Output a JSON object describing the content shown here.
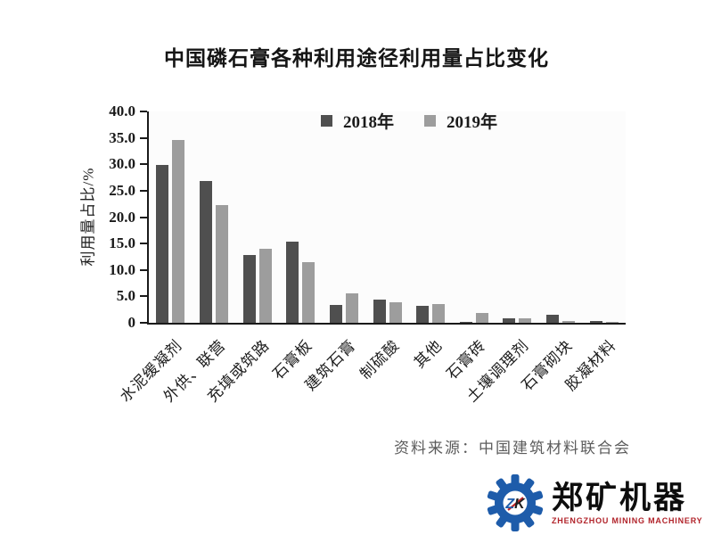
{
  "title": "中国磷石膏各种利用途径利用量占比变化",
  "source_note": "资料来源：中国建筑材料联合会",
  "colors": {
    "bar_2018": "#4f4f4f",
    "bar_2019": "#9d9d9d",
    "axis": "#1a1a1a",
    "source_text": "#5c5c5c",
    "logo_blue": "#1e5caa",
    "logo_red": "#b1232a"
  },
  "logo": {
    "monogram_z": "Z",
    "monogram_k": "K",
    "company_cn": "郑矿机器",
    "company_en": "ZHENGZHOU MINING MACHINERY"
  },
  "chart_data": {
    "type": "bar",
    "title": "中国磷石膏各种利用途径利用量占比变化",
    "xlabel": "",
    "ylabel": "利用量占比/%",
    "ylim": [
      0,
      40
    ],
    "ytick_step": 5,
    "ytick_labels": [
      "0",
      "5.0",
      "10.0",
      "15.0",
      "20.0",
      "25.0",
      "30.0",
      "35.0",
      "40.0"
    ],
    "grid": false,
    "legend_position": "top-inside",
    "categories": [
      "水泥缓凝剂",
      "外供、联营",
      "充填或筑路",
      "石膏板",
      "建筑石膏",
      "制硫酸",
      "其他",
      "石膏砖",
      "土壤调理剂",
      "石膏砌块",
      "胶凝材料"
    ],
    "series": [
      {
        "name": "2018年",
        "color": "#4f4f4f",
        "values": [
          29.8,
          26.8,
          12.8,
          15.4,
          3.4,
          4.4,
          3.2,
          0.2,
          0.9,
          1.5,
          0.4
        ]
      },
      {
        "name": "2019年",
        "color": "#9d9d9d",
        "values": [
          34.6,
          22.3,
          14.0,
          11.4,
          5.6,
          3.9,
          3.6,
          1.8,
          0.9,
          0.4,
          0.1
        ]
      }
    ]
  }
}
